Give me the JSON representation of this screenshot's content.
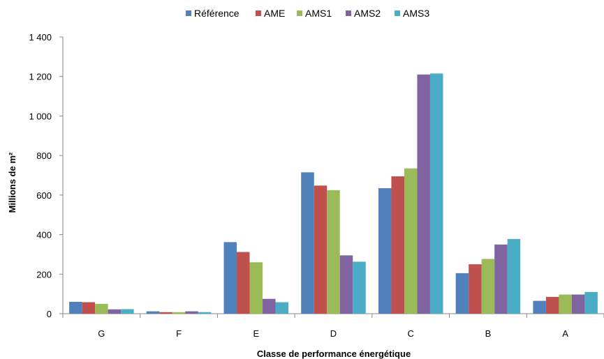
{
  "chart_data": {
    "type": "bar",
    "title": "",
    "xlabel": "Classe de performance énergétique",
    "ylabel": "Millions de m²",
    "ylim": [
      0,
      1400
    ],
    "yticks": [
      0,
      200,
      400,
      600,
      800,
      1000,
      1200,
      1400
    ],
    "ytick_labels": [
      "0",
      "200",
      "400",
      "600",
      "800",
      "1 000",
      "1 200",
      "1 400"
    ],
    "grid": false,
    "legend_position": "top",
    "categories": [
      "G",
      "F",
      "E",
      "D",
      "C",
      "B",
      "A"
    ],
    "series": [
      {
        "name": "Référence",
        "color": "#4F81BD",
        "values": [
          60,
          12,
          362,
          715,
          635,
          205,
          65
        ]
      },
      {
        "name": "AME",
        "color": "#C0504D",
        "values": [
          58,
          8,
          312,
          648,
          695,
          250,
          85
        ]
      },
      {
        "name": "AMS1",
        "color": "#9BBB59",
        "values": [
          50,
          8,
          260,
          625,
          735,
          277,
          97
        ]
      },
      {
        "name": "AMS2",
        "color": "#8064A2",
        "values": [
          22,
          12,
          75,
          295,
          1210,
          350,
          97
        ]
      },
      {
        "name": "AMS3",
        "color": "#4BACC6",
        "values": [
          23,
          8,
          58,
          263,
          1215,
          378,
          110
        ]
      }
    ]
  }
}
